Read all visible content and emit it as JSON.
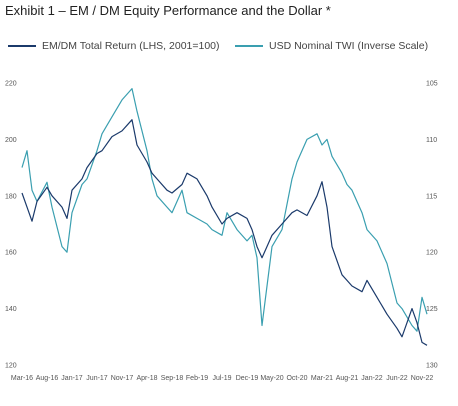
{
  "title": "Exhibit 1 – EM / DM Equity Performance and the Dollar *",
  "chart_data": {
    "type": "line",
    "x_ticks": [
      "Mar-16",
      "Aug-16",
      "Jan-17",
      "Jun-17",
      "Nov-17",
      "Apr-18",
      "Sep-18",
      "Feb-19",
      "Jul-19",
      "Dec-19",
      "May-20",
      "Oct-20",
      "Mar-21",
      "Aug-21",
      "Jan-22",
      "Jun-22",
      "Nov-22"
    ],
    "y_left": {
      "ticks": [
        120,
        140,
        160,
        180,
        200,
        220
      ],
      "range": [
        120,
        220
      ]
    },
    "y_right": {
      "ticks": [
        105,
        110,
        115,
        120,
        125,
        130
      ],
      "range": [
        105,
        130
      ],
      "inverted": true
    },
    "grid": false,
    "legend_position": "top",
    "series": [
      {
        "name": "EM/DM Total Return (LHS, 2001=100)",
        "axis": "left",
        "color": "#1b3a6b",
        "x": [
          "Mar-16",
          "Apr-16",
          "May-16",
          "Jun-16",
          "Aug-16",
          "Sep-16",
          "Nov-16",
          "Dec-16",
          "Jan-17",
          "Mar-17",
          "Apr-17",
          "Jun-17",
          "Jul-17",
          "Sep-17",
          "Nov-17",
          "Jan-18",
          "Feb-18",
          "Apr-18",
          "May-18",
          "Jun-18",
          "Aug-18",
          "Sep-18",
          "Nov-18",
          "Dec-18",
          "Feb-19",
          "Apr-19",
          "May-19",
          "Jul-19",
          "Aug-19",
          "Oct-19",
          "Dec-19",
          "Jan-20",
          "Feb-20",
          "Mar-20",
          "May-20",
          "Jul-20",
          "Sep-20",
          "Oct-20",
          "Dec-20",
          "Feb-21",
          "Mar-21",
          "Apr-21",
          "May-21",
          "Jul-21",
          "Aug-21",
          "Sep-21",
          "Nov-21",
          "Dec-21",
          "Feb-22",
          "Apr-22",
          "Jun-22",
          "Jul-22",
          "Sep-22",
          "Oct-22",
          "Nov-22",
          "Dec-22"
        ],
        "values": [
          181,
          176,
          171,
          178,
          183,
          180,
          176,
          172,
          182,
          186,
          190,
          195,
          196,
          201,
          203,
          207,
          198,
          192,
          188,
          186,
          182,
          181,
          184,
          188,
          186,
          180,
          176,
          170,
          172,
          174,
          172,
          168,
          162,
          158,
          166,
          170,
          174,
          175,
          173,
          180,
          185,
          176,
          162,
          152,
          150,
          148,
          146,
          150,
          144,
          138,
          133,
          130,
          140,
          135,
          128,
          127
        ]
      },
      {
        "name": "USD Nominal TWI (Inverse Scale)",
        "axis": "right",
        "color": "#3a9fb0",
        "x": [
          "Mar-16",
          "Apr-16",
          "May-16",
          "Jun-16",
          "Aug-16",
          "Sep-16",
          "Nov-16",
          "Dec-16",
          "Jan-17",
          "Mar-17",
          "Apr-17",
          "Jun-17",
          "Jul-17",
          "Sep-17",
          "Nov-17",
          "Jan-18",
          "Feb-18",
          "Apr-18",
          "May-18",
          "Jun-18",
          "Aug-18",
          "Sep-18",
          "Nov-18",
          "Dec-18",
          "Feb-19",
          "Apr-19",
          "May-19",
          "Jul-19",
          "Aug-19",
          "Oct-19",
          "Dec-19",
          "Jan-20",
          "Feb-20",
          "Mar-20",
          "May-20",
          "Jul-20",
          "Sep-20",
          "Oct-20",
          "Dec-20",
          "Feb-21",
          "Mar-21",
          "Apr-21",
          "May-21",
          "Jul-21",
          "Aug-21",
          "Sep-21",
          "Nov-21",
          "Dec-21",
          "Feb-22",
          "Apr-22",
          "Jun-22",
          "Jul-22",
          "Sep-22",
          "Oct-22",
          "Nov-22",
          "Dec-22"
        ],
        "values": [
          112.5,
          111.0,
          114.5,
          115.5,
          113.8,
          116.0,
          119.5,
          120.0,
          116.5,
          114.0,
          113.5,
          111.0,
          109.5,
          108.0,
          106.5,
          105.5,
          107.5,
          111.0,
          113.5,
          115.0,
          116.0,
          116.5,
          114.5,
          116.5,
          117.0,
          117.5,
          118.0,
          118.5,
          116.5,
          118.0,
          119.0,
          118.5,
          120.5,
          126.5,
          119.5,
          118.0,
          113.5,
          112.0,
          110.0,
          109.5,
          110.5,
          110.0,
          111.5,
          113.0,
          114.0,
          114.5,
          116.5,
          118.0,
          119.0,
          121.0,
          124.5,
          125.0,
          126.5,
          127.0,
          124.0,
          125.5
        ]
      }
    ]
  }
}
